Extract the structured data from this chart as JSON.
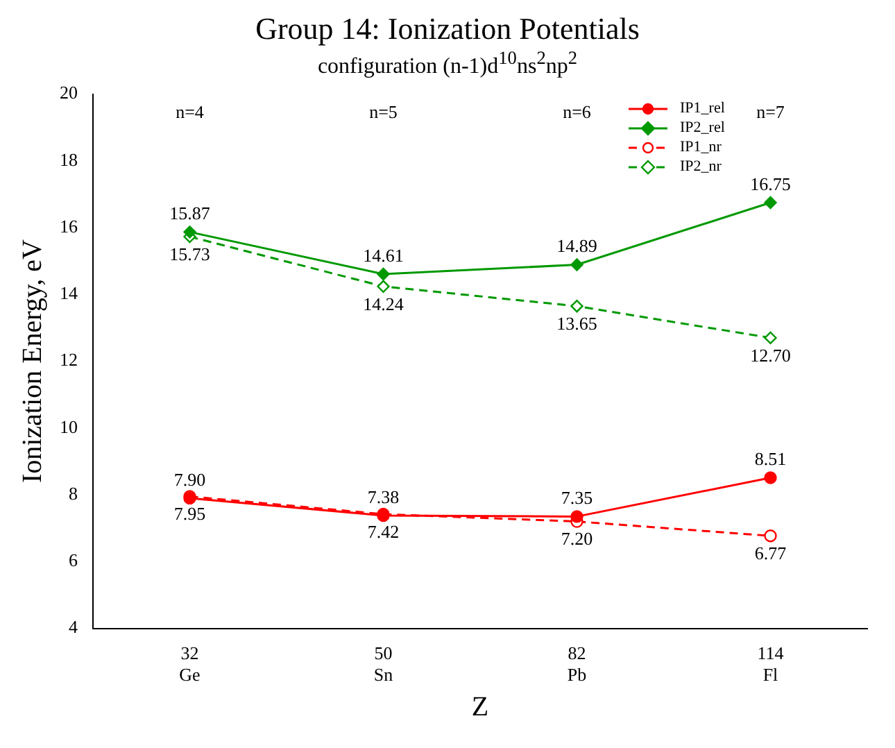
{
  "chart_data": {
    "type": "line",
    "title": "Group 14: Ionization Potentials",
    "subtitle": "configuration (n-1)d$^{10}$ns$^{2}$np$^{2}$",
    "xlabel": "Z",
    "ylabel": "Ionization Energy, eV",
    "categories": [
      "32\nGe",
      "50\nSn",
      "82\nPb",
      "114\nFl"
    ],
    "ylim": [
      4,
      20
    ],
    "yticks": [
      4,
      6,
      8,
      10,
      12,
      14,
      16,
      18,
      20
    ],
    "grid": false,
    "legend": "top right",
    "series": [
      {
        "name": "IP1_rel",
        "color": "#ff0000",
        "marker": "circle",
        "line_style": "solid",
        "values": [
          7.9,
          7.38,
          7.35,
          8.51
        ],
        "value_labels": [
          "7.90",
          "7.38",
          "7.35",
          "8.51"
        ]
      },
      {
        "name": "IP2_rel",
        "color": "#009900",
        "marker": "diamond",
        "line_style": "solid",
        "values": [
          15.87,
          14.61,
          14.89,
          16.75
        ],
        "value_labels": [
          "15.87",
          "14.61",
          "14.89",
          "16.75"
        ]
      },
      {
        "name": "IP1_nr",
        "color": "#ff0000",
        "marker": "circle",
        "line_style": "dashed",
        "values": [
          7.95,
          7.42,
          7.2,
          6.77
        ],
        "value_labels": [
          "7.95",
          "7.42",
          "7.20",
          "6.77"
        ]
      },
      {
        "name": "IP2_nr",
        "color": "#009900",
        "marker": "diamond",
        "line_style": "dashed",
        "values": [
          15.73,
          14.24,
          13.65,
          12.7
        ],
        "value_labels": [
          "15.73",
          "14.24",
          "13.65",
          "12.70"
        ]
      }
    ],
    "annotations": [
      "n=4",
      "n=5",
      "n=6",
      "n=7"
    ]
  }
}
